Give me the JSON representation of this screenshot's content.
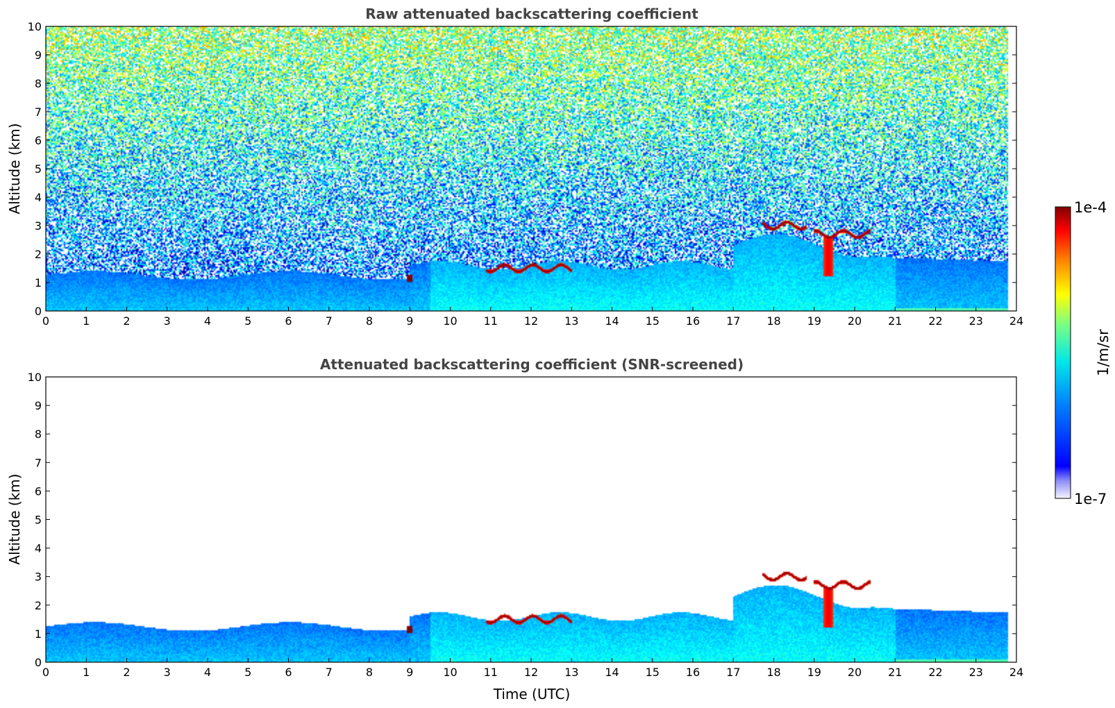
{
  "chart_data": [
    {
      "type": "heatmap",
      "title": "Raw attenuated backscattering coefficient",
      "xlabel": "",
      "ylabel": "Altitude (km)",
      "xlim": [
        0,
        24
      ],
      "ylim": [
        0,
        10
      ],
      "xticks": [
        "0",
        "1",
        "2",
        "3",
        "4",
        "5",
        "6",
        "7",
        "8",
        "9",
        "10",
        "11",
        "12",
        "13",
        "14",
        "15",
        "16",
        "17",
        "18",
        "19",
        "20",
        "21",
        "22",
        "23",
        "24"
      ],
      "yticks": [
        "0",
        "1",
        "2",
        "3",
        "4",
        "5",
        "6",
        "7",
        "8",
        "9",
        "10"
      ],
      "data_end_time": 23.8,
      "cloud_layers": [
        {
          "t_start": 10.9,
          "t_end": 13.0,
          "alt_km": 1.5
        },
        {
          "t_start": 17.7,
          "t_end": 18.8,
          "alt_km": 3.0
        },
        {
          "t_start": 19.0,
          "t_end": 20.4,
          "alt_km": 2.7
        }
      ]
    },
    {
      "type": "heatmap",
      "title": "Attenuated backscattering coefficient (SNR-screened)",
      "xlabel": "Time (UTC)",
      "ylabel": "Altitude (km)",
      "xlim": [
        0,
        24
      ],
      "ylim": [
        0,
        10
      ],
      "xticks": [
        "0",
        "1",
        "2",
        "3",
        "4",
        "5",
        "6",
        "7",
        "8",
        "9",
        "10",
        "11",
        "12",
        "13",
        "14",
        "15",
        "16",
        "17",
        "18",
        "19",
        "20",
        "21",
        "22",
        "23",
        "24"
      ],
      "yticks": [
        "0",
        "1",
        "2",
        "3",
        "4",
        "5",
        "6",
        "7",
        "8",
        "9",
        "10"
      ],
      "data_end_time": 23.8
    }
  ],
  "colorbar": {
    "label": "1/m/sr",
    "max_label": "1e-4",
    "min_label": "1e-7",
    "scale": "log",
    "colormap": "jet"
  }
}
